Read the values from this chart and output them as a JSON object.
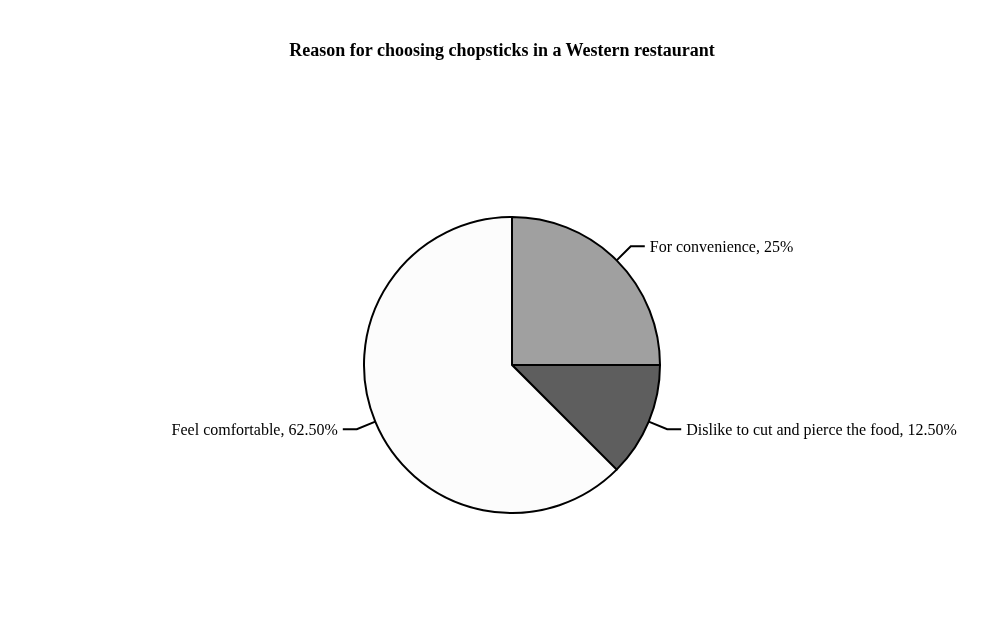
{
  "chart_data": {
    "type": "pie",
    "title": "Reason for choosing chopsticks in a Western restaurant",
    "categories": [
      "For convenience",
      "Dislike to cut and pierce the food",
      "Feel comfortable"
    ],
    "values": [
      25,
      12.5,
      62.5
    ],
    "value_labels": [
      "25%",
      "12.50%",
      "62.50%"
    ],
    "colors": [
      "#a0a0a0",
      "#5e5e5e",
      "#fcfcfc"
    ],
    "legend": false
  }
}
